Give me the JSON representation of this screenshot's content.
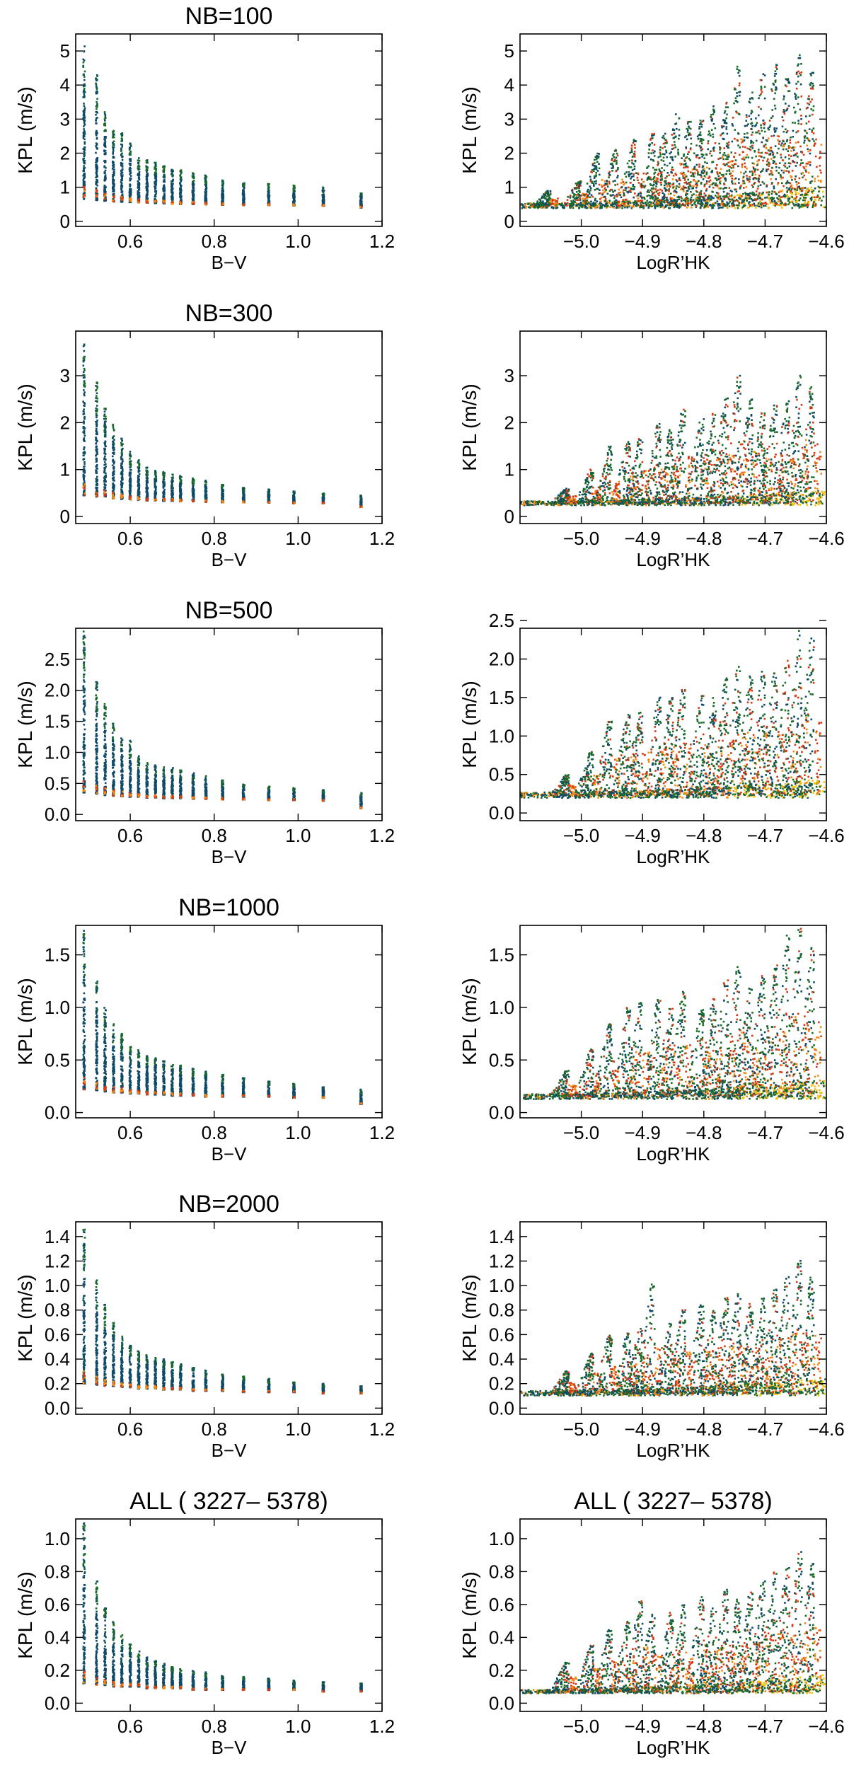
{
  "figure": {
    "description_free": true,
    "colors": {
      "green": "#1a6b2a",
      "teal": "#0f4a66",
      "red": "#d43a14",
      "orange": "#f28b14",
      "yellow": "#f2c010"
    }
  },
  "chart_data": [
    {
      "id": "p1",
      "type": "scatter",
      "title": "NB=100",
      "xlabel": "B−V",
      "ylabel": "KPL (m/s)",
      "xlim": [
        0.47,
        1.2
      ],
      "ylim": [
        -0.15,
        5.5
      ],
      "xticks": [
        0.6,
        0.8,
        1.0,
        1.2
      ],
      "xtick_labels": [
        "0.6",
        "0.8",
        "1.0",
        "1.2"
      ],
      "yticks": [
        0,
        1,
        2,
        3,
        4,
        5
      ],
      "ytick_labels": [
        "0",
        "1",
        "2",
        "3",
        "4",
        "5"
      ],
      "columns": {
        "x": [
          0.49,
          0.52,
          0.54,
          0.56,
          0.58,
          0.6,
          0.62,
          0.64,
          0.66,
          0.68,
          0.7,
          0.72,
          0.75,
          0.78,
          0.82,
          0.87,
          0.93,
          0.99,
          1.06,
          1.15
        ],
        "top": [
          5.2,
          4.4,
          3.3,
          2.75,
          2.6,
          2.3,
          1.9,
          1.8,
          1.75,
          1.65,
          1.55,
          1.5,
          1.42,
          1.35,
          1.2,
          1.15,
          1.1,
          1.05,
          1.0,
          0.85
        ],
        "base": [
          0.65,
          0.62,
          0.6,
          0.58,
          0.57,
          0.56,
          0.55,
          0.54,
          0.53,
          0.52,
          0.51,
          0.5,
          0.5,
          0.49,
          0.48,
          0.47,
          0.47,
          0.46,
          0.45,
          0.4
        ]
      }
    },
    {
      "id": "p2",
      "type": "scatter",
      "title": "",
      "xlabel": "LogR’HK",
      "ylabel": "KPL (m/s)",
      "xlim": [
        -5.1,
        -4.6
      ],
      "ylim": [
        -0.15,
        5.5
      ],
      "xticks": [
        -5.0,
        -4.9,
        -4.8,
        -4.7,
        -4.6
      ],
      "xtick_labels": [
        "−5.0",
        "−4.9",
        "−4.8",
        "−4.7",
        "−4.6"
      ],
      "yticks": [
        0,
        1,
        2,
        3,
        4,
        5
      ],
      "ytick_labels": [
        "0",
        "1",
        "2",
        "3",
        "4",
        "5"
      ],
      "activity": {
        "floor_left": 0.45,
        "floor_right": 0.95,
        "peaks_x": [
          -5.05,
          -5.0,
          -4.97,
          -4.94,
          -4.91,
          -4.88,
          -4.86,
          -4.84,
          -4.82,
          -4.8,
          -4.78,
          -4.76,
          -4.74,
          -4.72,
          -4.7,
          -4.68,
          -4.66,
          -4.64,
          -4.62
        ],
        "peaks_h": [
          0.9,
          1.2,
          2.0,
          2.1,
          2.4,
          2.6,
          2.6,
          3.2,
          3.0,
          3.0,
          3.4,
          3.5,
          4.6,
          3.8,
          4.5,
          4.6,
          4.2,
          4.9,
          4.4
        ]
      }
    },
    {
      "id": "p3",
      "type": "scatter",
      "title": "NB=300",
      "xlabel": "B−V",
      "ylabel": "KPL (m/s)",
      "xlim": [
        0.47,
        1.2
      ],
      "ylim": [
        -0.15,
        3.95
      ],
      "xticks": [
        0.6,
        0.8,
        1.0,
        1.2
      ],
      "xtick_labels": [
        "0.6",
        "0.8",
        "1.0",
        "1.2"
      ],
      "yticks": [
        0,
        1,
        2,
        3
      ],
      "ytick_labels": [
        "0",
        "1",
        "2",
        "3"
      ],
      "columns": {
        "x": [
          0.49,
          0.52,
          0.54,
          0.56,
          0.58,
          0.6,
          0.62,
          0.64,
          0.66,
          0.68,
          0.7,
          0.72,
          0.75,
          0.78,
          0.82,
          0.87,
          0.93,
          0.99,
          1.06,
          1.15
        ],
        "top": [
          3.7,
          2.9,
          2.3,
          2.0,
          1.7,
          1.4,
          1.2,
          1.05,
          1.0,
          0.95,
          0.9,
          0.87,
          0.82,
          0.78,
          0.7,
          0.62,
          0.58,
          0.55,
          0.5,
          0.45
        ],
        "base": [
          0.45,
          0.42,
          0.4,
          0.38,
          0.37,
          0.36,
          0.35,
          0.34,
          0.34,
          0.33,
          0.33,
          0.32,
          0.32,
          0.31,
          0.3,
          0.3,
          0.29,
          0.28,
          0.28,
          0.2
        ]
      }
    },
    {
      "id": "p4",
      "type": "scatter",
      "title": "",
      "xlabel": "LogR’HK",
      "ylabel": "KPL (m/s)",
      "xlim": [
        -5.1,
        -4.6
      ],
      "ylim": [
        -0.15,
        3.95
      ],
      "xticks": [
        -5.0,
        -4.9,
        -4.8,
        -4.7,
        -4.6
      ],
      "xtick_labels": [
        "−5.0",
        "−4.9",
        "−4.8",
        "−4.7",
        "−4.6"
      ],
      "yticks": [
        0,
        1,
        2,
        3
      ],
      "ytick_labels": [
        "0",
        "1",
        "2",
        "3"
      ],
      "activity": {
        "floor_left": 0.28,
        "floor_right": 0.5,
        "peaks_x": [
          -5.02,
          -4.98,
          -4.95,
          -4.92,
          -4.9,
          -4.87,
          -4.85,
          -4.83,
          -4.8,
          -4.78,
          -4.76,
          -4.74,
          -4.72,
          -4.7,
          -4.68,
          -4.66,
          -4.64,
          -4.62
        ],
        "peaks_h": [
          0.6,
          1.0,
          1.5,
          1.6,
          1.7,
          2.0,
          1.9,
          2.3,
          2.1,
          2.2,
          2.6,
          3.0,
          2.5,
          2.2,
          2.4,
          2.5,
          3.0,
          2.8
        ]
      }
    },
    {
      "id": "p5",
      "type": "scatter",
      "title": "NB=500",
      "xlabel": "B−V",
      "ylabel": "KPL (m/s)",
      "xlim": [
        0.47,
        1.2
      ],
      "ylim": [
        -0.1,
        3.0
      ],
      "xticks": [
        0.6,
        0.8,
        1.0,
        1.2
      ],
      "xtick_labels": [
        "0.6",
        "0.8",
        "1.0",
        "1.2"
      ],
      "yticks": [
        0,
        0.5,
        1,
        1.5,
        2,
        2.5
      ],
      "ytick_labels": [
        "0.0",
        "0.5",
        "1.0",
        "1.5",
        "2.0",
        "2.5"
      ],
      "columns": {
        "x": [
          0.49,
          0.52,
          0.54,
          0.56,
          0.58,
          0.6,
          0.62,
          0.64,
          0.66,
          0.68,
          0.7,
          0.72,
          0.75,
          0.78,
          0.82,
          0.87,
          0.93,
          0.99,
          1.06,
          1.15
        ],
        "top": [
          2.95,
          2.15,
          1.8,
          1.5,
          1.25,
          1.2,
          0.95,
          0.85,
          0.8,
          0.78,
          0.75,
          0.72,
          0.68,
          0.63,
          0.55,
          0.5,
          0.45,
          0.43,
          0.4,
          0.35
        ],
        "base": [
          0.35,
          0.33,
          0.31,
          0.3,
          0.29,
          0.28,
          0.28,
          0.27,
          0.27,
          0.26,
          0.26,
          0.26,
          0.25,
          0.25,
          0.24,
          0.24,
          0.23,
          0.23,
          0.22,
          0.1
        ]
      }
    },
    {
      "id": "p6",
      "type": "scatter",
      "title": "",
      "xlabel": "LogR’HK",
      "ylabel": "KPL (m/s)",
      "xlim": [
        -5.1,
        -4.6
      ],
      "ylim": [
        -0.1,
        2.4
      ],
      "xticks": [
        -5.0,
        -4.9,
        -4.8,
        -4.7,
        -4.6
      ],
      "xtick_labels": [
        "−5.0",
        "−4.9",
        "−4.8",
        "−4.7",
        "−4.6"
      ],
      "yticks": [
        0,
        0.5,
        1,
        1.5,
        2,
        2.5
      ],
      "ytick_labels": [
        "0.0",
        "0.5",
        "1.0",
        "1.5",
        "2.0",
        "2.5"
      ],
      "activity": {
        "floor_left": 0.23,
        "floor_right": 0.4,
        "peaks_x": [
          -5.02,
          -4.98,
          -4.95,
          -4.92,
          -4.9,
          -4.87,
          -4.85,
          -4.83,
          -4.8,
          -4.78,
          -4.76,
          -4.74,
          -4.72,
          -4.7,
          -4.68,
          -4.66,
          -4.64,
          -4.62
        ],
        "peaks_h": [
          0.5,
          0.8,
          1.2,
          1.3,
          1.35,
          1.5,
          1.5,
          1.6,
          1.55,
          1.55,
          1.75,
          1.9,
          1.8,
          1.85,
          1.9,
          2.0,
          2.4,
          2.3
        ]
      }
    },
    {
      "id": "p7",
      "type": "scatter",
      "title": "NB=1000",
      "xlabel": "B−V",
      "ylabel": "KPL (m/s)",
      "xlim": [
        0.47,
        1.2
      ],
      "ylim": [
        -0.05,
        1.78
      ],
      "xticks": [
        0.6,
        0.8,
        1.0,
        1.2
      ],
      "xtick_labels": [
        "0.6",
        "0.8",
        "1.0",
        "1.2"
      ],
      "yticks": [
        0,
        0.5,
        1,
        1.5
      ],
      "ytick_labels": [
        "0.0",
        "0.5",
        "1.0",
        "1.5"
      ],
      "columns": {
        "x": [
          0.49,
          0.52,
          0.54,
          0.56,
          0.58,
          0.6,
          0.62,
          0.64,
          0.66,
          0.68,
          0.7,
          0.72,
          0.75,
          0.78,
          0.82,
          0.87,
          0.93,
          0.99,
          1.06,
          1.15
        ],
        "top": [
          1.75,
          1.25,
          1.0,
          0.85,
          0.75,
          0.63,
          0.6,
          0.55,
          0.52,
          0.5,
          0.48,
          0.45,
          0.42,
          0.4,
          0.36,
          0.34,
          0.3,
          0.28,
          0.25,
          0.22
        ],
        "base": [
          0.22,
          0.21,
          0.2,
          0.19,
          0.19,
          0.18,
          0.18,
          0.17,
          0.17,
          0.17,
          0.16,
          0.16,
          0.16,
          0.15,
          0.15,
          0.15,
          0.15,
          0.14,
          0.14,
          0.08
        ]
      }
    },
    {
      "id": "p8",
      "type": "scatter",
      "title": "",
      "xlabel": "LogR’HK",
      "ylabel": "KPL (m/s)",
      "xlim": [
        -5.1,
        -4.6
      ],
      "ylim": [
        -0.05,
        1.78
      ],
      "xticks": [
        -5.0,
        -4.9,
        -4.8,
        -4.7,
        -4.6
      ],
      "xtick_labels": [
        "−5.0",
        "−4.9",
        "−4.8",
        "−4.7",
        "−4.6"
      ],
      "yticks": [
        0,
        0.5,
        1,
        1.5
      ],
      "ytick_labels": [
        "0.0",
        "0.5",
        "1.0",
        "1.5"
      ],
      "activity": {
        "floor_left": 0.15,
        "floor_right": 0.28,
        "peaks_x": [
          -5.02,
          -4.98,
          -4.95,
          -4.92,
          -4.9,
          -4.87,
          -4.85,
          -4.83,
          -4.8,
          -4.78,
          -4.76,
          -4.74,
          -4.72,
          -4.7,
          -4.68,
          -4.66,
          -4.64,
          -4.62
        ],
        "peaks_h": [
          0.4,
          0.6,
          0.85,
          1.0,
          1.05,
          1.1,
          1.0,
          1.15,
          1.0,
          1.1,
          1.3,
          1.4,
          1.2,
          1.3,
          1.4,
          1.7,
          1.75,
          1.6
        ]
      }
    },
    {
      "id": "p9",
      "type": "scatter",
      "title": "NB=2000",
      "xlabel": "B−V",
      "ylabel": "KPL (m/s)",
      "xlim": [
        0.47,
        1.2
      ],
      "ylim": [
        -0.05,
        1.52
      ],
      "xticks": [
        0.6,
        0.8,
        1.0,
        1.2
      ],
      "xtick_labels": [
        "0.6",
        "0.8",
        "1.0",
        "1.2"
      ],
      "yticks": [
        0,
        0.2,
        0.4,
        0.6,
        0.8,
        1,
        1.2,
        1.4
      ],
      "ytick_labels": [
        "0.0",
        "0.2",
        "0.4",
        "0.6",
        "0.8",
        "1.0",
        "1.2",
        "1.4"
      ],
      "columns": {
        "x": [
          0.49,
          0.52,
          0.54,
          0.56,
          0.58,
          0.6,
          0.62,
          0.64,
          0.66,
          0.68,
          0.7,
          0.72,
          0.75,
          0.78,
          0.82,
          0.87,
          0.93,
          0.99,
          1.06,
          1.15
        ],
        "top": [
          1.5,
          1.05,
          0.85,
          0.7,
          0.6,
          0.52,
          0.48,
          0.45,
          0.42,
          0.4,
          0.38,
          0.36,
          0.33,
          0.31,
          0.28,
          0.26,
          0.24,
          0.22,
          0.2,
          0.18
        ],
        "base": [
          0.2,
          0.19,
          0.18,
          0.18,
          0.17,
          0.17,
          0.16,
          0.16,
          0.16,
          0.15,
          0.15,
          0.15,
          0.14,
          0.14,
          0.14,
          0.13,
          0.13,
          0.13,
          0.12,
          0.12
        ]
      }
    },
    {
      "id": "p10",
      "type": "scatter",
      "title": "",
      "xlabel": "LogR’HK",
      "ylabel": "KPL (m/s)",
      "xlim": [
        -5.1,
        -4.6
      ],
      "ylim": [
        -0.05,
        1.52
      ],
      "xticks": [
        -5.0,
        -4.9,
        -4.8,
        -4.7,
        -4.6
      ],
      "xtick_labels": [
        "−5.0",
        "−4.9",
        "−4.8",
        "−4.7",
        "−4.6"
      ],
      "yticks": [
        0,
        0.2,
        0.4,
        0.6,
        0.8,
        1,
        1.2,
        1.4
      ],
      "ytick_labels": [
        "0.0",
        "0.2",
        "0.4",
        "0.6",
        "0.8",
        "1.0",
        "1.2",
        "1.4"
      ],
      "activity": {
        "floor_left": 0.12,
        "floor_right": 0.22,
        "peaks_x": [
          -5.02,
          -4.98,
          -4.95,
          -4.92,
          -4.9,
          -4.88,
          -4.85,
          -4.83,
          -4.8,
          -4.78,
          -4.76,
          -4.74,
          -4.72,
          -4.7,
          -4.68,
          -4.66,
          -4.64,
          -4.62
        ],
        "peaks_h": [
          0.3,
          0.45,
          0.6,
          0.62,
          0.65,
          1.02,
          0.7,
          0.8,
          0.85,
          0.8,
          0.9,
          0.95,
          0.85,
          0.9,
          1.0,
          1.1,
          1.22,
          1.1
        ]
      }
    },
    {
      "id": "p11",
      "type": "scatter",
      "title": "ALL ( 3227– 5378)",
      "xlabel": "B−V",
      "ylabel": "KPL (m/s)",
      "xlim": [
        0.47,
        1.2
      ],
      "ylim": [
        -0.05,
        1.12
      ],
      "xticks": [
        0.6,
        0.8,
        1.0,
        1.2
      ],
      "xtick_labels": [
        "0.6",
        "0.8",
        "1.0",
        "1.2"
      ],
      "yticks": [
        0,
        0.2,
        0.4,
        0.6,
        0.8,
        1
      ],
      "ytick_labels": [
        "0.0",
        "0.2",
        "0.4",
        "0.6",
        "0.8",
        "1.0"
      ],
      "columns": {
        "x": [
          0.49,
          0.52,
          0.54,
          0.56,
          0.58,
          0.6,
          0.62,
          0.64,
          0.66,
          0.68,
          0.7,
          0.72,
          0.75,
          0.78,
          0.82,
          0.87,
          0.93,
          0.99,
          1.06,
          1.15
        ],
        "top": [
          1.1,
          0.75,
          0.58,
          0.5,
          0.42,
          0.36,
          0.32,
          0.28,
          0.26,
          0.24,
          0.22,
          0.21,
          0.2,
          0.19,
          0.17,
          0.16,
          0.15,
          0.14,
          0.13,
          0.12
        ],
        "base": [
          0.12,
          0.11,
          0.11,
          0.1,
          0.1,
          0.1,
          0.1,
          0.09,
          0.09,
          0.09,
          0.09,
          0.09,
          0.08,
          0.08,
          0.08,
          0.08,
          0.08,
          0.08,
          0.07,
          0.07
        ]
      }
    },
    {
      "id": "p12",
      "type": "scatter",
      "title": "ALL ( 3227– 5378)",
      "xlabel": "LogR’HK",
      "ylabel": "KPL (m/s)",
      "xlim": [
        -5.1,
        -4.6
      ],
      "ylim": [
        -0.05,
        1.12
      ],
      "xticks": [
        -5.0,
        -4.9,
        -4.8,
        -4.7,
        -4.6
      ],
      "xtick_labels": [
        "−5.0",
        "−4.9",
        "−4.8",
        "−4.7",
        "−4.6"
      ],
      "yticks": [
        0,
        0.2,
        0.4,
        0.6,
        0.8,
        1
      ],
      "ytick_labels": [
        "0.0",
        "0.2",
        "0.4",
        "0.6",
        "0.8",
        "1.0"
      ],
      "activity": {
        "floor_left": 0.07,
        "floor_right": 0.16,
        "peaks_x": [
          -5.02,
          -4.98,
          -4.95,
          -4.92,
          -4.9,
          -4.88,
          -4.85,
          -4.83,
          -4.8,
          -4.78,
          -4.76,
          -4.74,
          -4.72,
          -4.7,
          -4.68,
          -4.66,
          -4.64,
          -4.62
        ],
        "peaks_h": [
          0.25,
          0.35,
          0.45,
          0.5,
          0.62,
          0.55,
          0.55,
          0.6,
          0.65,
          0.6,
          0.7,
          0.65,
          0.68,
          0.75,
          0.8,
          0.85,
          0.92,
          0.85
        ]
      }
    }
  ]
}
